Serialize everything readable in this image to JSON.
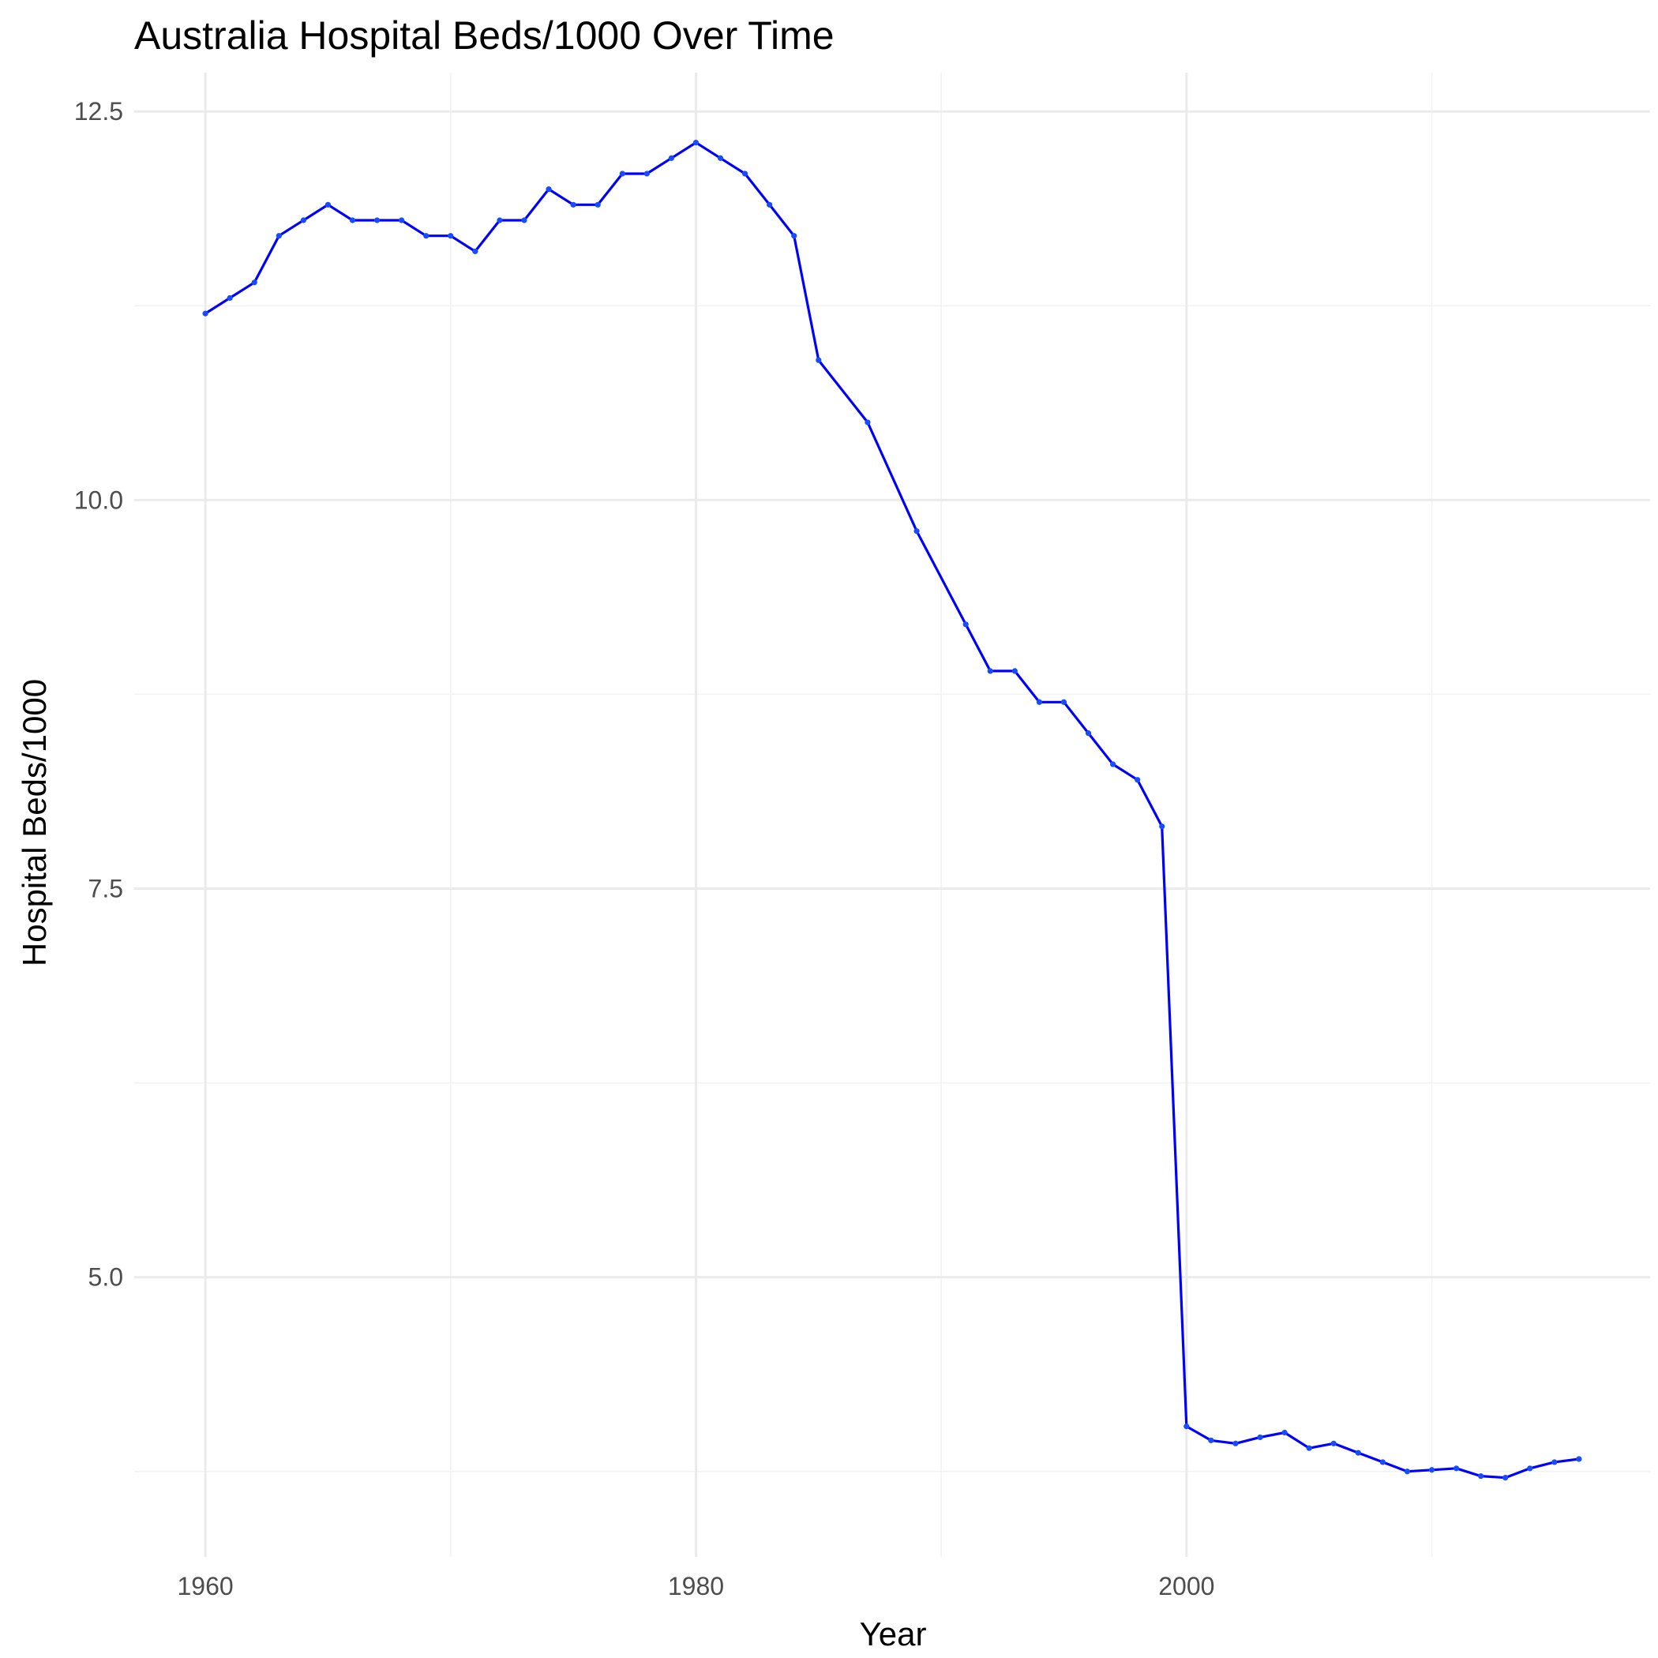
{
  "chart_data": {
    "type": "line",
    "title": "Australia Hospital Beds/1000 Over Time",
    "xlabel": "Year",
    "ylabel": "Hospital Beds/1000",
    "xlim": [
      1957.1,
      2018.9
    ],
    "ylim": [
      3.2,
      12.75
    ],
    "x_ticks": [
      1960,
      1980,
      2000
    ],
    "x_tick_labels": [
      "1960",
      "1980",
      "2000"
    ],
    "y_ticks": [
      5.0,
      7.5,
      10.0,
      12.5
    ],
    "y_tick_labels": [
      "5.0",
      "7.5",
      "10.0",
      "12.5"
    ],
    "grid": true,
    "legend": "none",
    "line_color": "#0000ff",
    "series": [
      {
        "x": [
          1960,
          1961,
          1962,
          1963,
          1964,
          1965,
          1966,
          1967,
          1968,
          1969,
          1970,
          1971,
          1972,
          1973,
          1974,
          1975,
          1976,
          1977,
          1978,
          1979,
          1980,
          1981,
          1982,
          1983,
          1984,
          1985,
          1987,
          1989,
          1991,
          1992,
          1993,
          1994,
          1995,
          1996,
          1997,
          1998,
          1999,
          2000,
          2001,
          2002,
          2003,
          2004,
          2005,
          2006,
          2007,
          2008,
          2009,
          2010,
          2011,
          2012,
          2013,
          2014,
          2015,
          2016
        ],
        "y": [
          11.2,
          11.3,
          11.4,
          11.7,
          11.8,
          11.9,
          11.8,
          11.8,
          11.8,
          11.7,
          11.7,
          11.6,
          11.8,
          11.8,
          12.0,
          11.9,
          11.9,
          12.1,
          12.1,
          12.2,
          12.3,
          12.2,
          12.1,
          11.9,
          11.7,
          10.9,
          10.5,
          9.8,
          9.2,
          8.9,
          8.9,
          8.7,
          8.7,
          8.5,
          8.3,
          8.2,
          7.9,
          4.04,
          3.95,
          3.93,
          3.97,
          4.0,
          3.9,
          3.93,
          3.87,
          3.81,
          3.75,
          3.76,
          3.77,
          3.72,
          3.71,
          3.77,
          3.81,
          3.83
        ]
      }
    ]
  }
}
